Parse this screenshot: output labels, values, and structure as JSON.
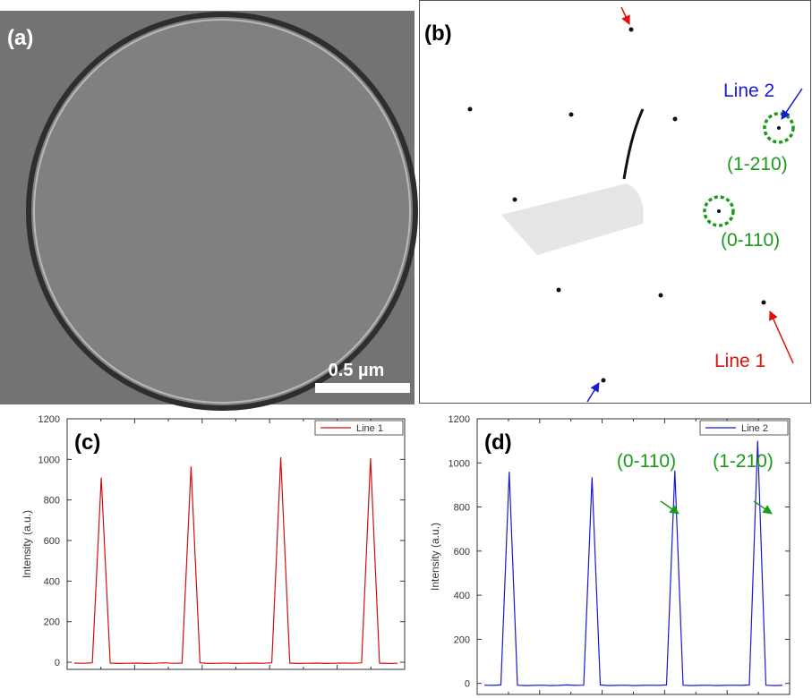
{
  "panels": {
    "a": {
      "label": "(a)",
      "scale_bar": "0.5 µm"
    },
    "b": {
      "label": "(b)",
      "line2": "Line 2",
      "spot1": "(1-210)",
      "spot2": "(0-110)",
      "line1": "Line 1"
    }
  },
  "chart_data": [
    {
      "type": "line",
      "title": "(c)",
      "ylabel": "Intensity (a.u.)",
      "categories": [
        null,
        null,
        null,
        null,
        null,
        null,
        null,
        null,
        null,
        null,
        null,
        null,
        null,
        null,
        null,
        null,
        null,
        null,
        null,
        null,
        null,
        null,
        null,
        null,
        null,
        null,
        null,
        null,
        null,
        null,
        null,
        null,
        null,
        null,
        null,
        null,
        null
      ],
      "series": [
        {
          "name": "Line 1",
          "color": "#d01010",
          "values": [
            -4,
            -5,
            -3,
            910,
            -4,
            -6,
            -5,
            -4,
            -6,
            -5,
            -3,
            -5,
            -4,
            965,
            -3,
            -6,
            -5,
            -4,
            -6,
            -5,
            -4,
            -5,
            -3,
            1010,
            -4,
            -6,
            -5,
            -4,
            -6,
            -5,
            -4,
            -5,
            -3,
            1005,
            -4,
            -6,
            -5
          ]
        }
      ],
      "ylim": [
        -35,
        1200
      ],
      "yticks": [
        0,
        200,
        400,
        600,
        800,
        1000,
        1200
      ],
      "legend": "upper right"
    },
    {
      "type": "line",
      "title": "(d)",
      "ylabel": "Intensity (a.u.)",
      "categories": [
        null,
        null,
        null,
        null,
        null,
        null,
        null,
        null,
        null,
        null,
        null,
        null,
        null,
        null,
        null,
        null,
        null,
        null,
        null,
        null,
        null,
        null,
        null,
        null,
        null,
        null,
        null,
        null,
        null,
        null,
        null,
        null,
        null,
        null,
        null,
        null,
        null
      ],
      "series": [
        {
          "name": "Line 2",
          "color": "#1a1ad0",
          "values": [
            -8,
            -9,
            -7,
            960,
            -8,
            -10,
            -9,
            -8,
            -10,
            -9,
            -7,
            -9,
            -8,
            935,
            -7,
            -10,
            -9,
            -8,
            -10,
            -9,
            -8,
            -9,
            -7,
            965,
            -8,
            -10,
            -9,
            -8,
            -10,
            -9,
            -8,
            -9,
            -7,
            1100,
            -8,
            -10,
            -9
          ]
        }
      ],
      "ylim": [
        -50,
        1200
      ],
      "yticks": [
        0,
        200,
        400,
        600,
        800,
        1000,
        1200
      ],
      "legend": "upper right",
      "annotations": [
        "(0-110)",
        "(1-210)"
      ]
    }
  ]
}
